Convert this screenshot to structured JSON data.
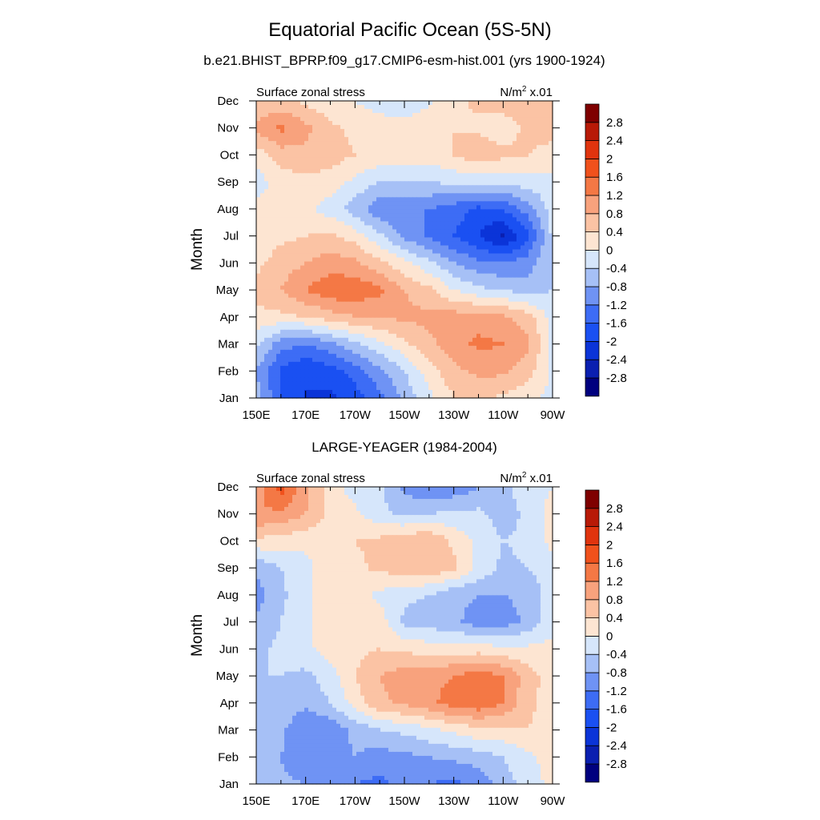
{
  "title": "Equatorial Pacific Ocean (5S-5N)",
  "colorbar": {
    "levels": [
      -2.8,
      -2.4,
      -2,
      -1.6,
      -1.2,
      -0.8,
      -0.4,
      0,
      0.4,
      0.8,
      1.2,
      1.6,
      2,
      2.4,
      2.8
    ],
    "labels": [
      "-2.8",
      "-2.4",
      "-2",
      "-1.6",
      "-1.2",
      "-0.8",
      "-0.4",
      "0",
      "0.4",
      "0.8",
      "1.2",
      "1.6",
      "2",
      "2.4",
      "2.8"
    ],
    "colors": [
      "#00007f",
      "#0a1fb0",
      "#0b34d8",
      "#1a50f2",
      "#3d6cf5",
      "#6f93f4",
      "#a6c0f6",
      "#d6e6fb",
      "#fde5d2",
      "#fbc3a4",
      "#f8a27d",
      "#f47845",
      "#f0511c",
      "#e0340e",
      "#b81a07",
      "#7f0000"
    ]
  },
  "chart_data": [
    {
      "type": "heatmap",
      "title": "b.e21.BHIST_BPRP.f09_g17.CMIP6-esm-hist.001 (yrs 1900-1924)",
      "left_label": "Surface zonal stress",
      "right_label_base": "N/m",
      "right_label_sup": "2",
      "right_label_tail": " x.01",
      "ylabel": "Month",
      "x_ticks": [
        "150E",
        "170E",
        "170W",
        "150W",
        "130W",
        "110W",
        "90W"
      ],
      "y_ticks": [
        "Jan",
        "Feb",
        "Mar",
        "Apr",
        "May",
        "Jun",
        "Jul",
        "Aug",
        "Sep",
        "Oct",
        "Nov",
        "Dec"
      ],
      "xlim_deg_east": [
        150,
        270
      ],
      "x_grid_deg_east": [
        150,
        160,
        170,
        180,
        190,
        200,
        210,
        220,
        230,
        240,
        250,
        260,
        270
      ],
      "values": [
        [
          -0.6,
          -1.6,
          -2.0,
          -2.1,
          -1.8,
          -1.3,
          -0.7,
          -0.1,
          0.4,
          0.5,
          0.3,
          0.1,
          -0.1
        ],
        [
          -0.8,
          -1.7,
          -2.0,
          -1.8,
          -1.4,
          -0.9,
          -0.4,
          0.2,
          0.7,
          0.9,
          0.9,
          0.6,
          -0.1
        ],
        [
          -0.3,
          -1.0,
          -1.2,
          -0.9,
          -0.5,
          -0.1,
          0.3,
          0.7,
          1.0,
          1.3,
          1.2,
          0.9,
          -0.1
        ],
        [
          0.3,
          0.3,
          0.4,
          0.6,
          0.8,
          0.8,
          0.9,
          0.9,
          1.0,
          1.0,
          0.9,
          0.6,
          -0.2
        ],
        [
          0.5,
          0.8,
          1.2,
          1.5,
          1.5,
          1.3,
          0.8,
          0.5,
          0.0,
          -0.3,
          -0.4,
          -0.6,
          -0.4
        ],
        [
          0.3,
          0.6,
          0.8,
          1.0,
          0.9,
          0.5,
          0.1,
          -0.3,
          -0.8,
          -1.1,
          -1.2,
          -1.0,
          -0.4
        ],
        [
          0.1,
          0.3,
          0.4,
          0.5,
          0.2,
          -0.3,
          -0.9,
          -1.3,
          -1.6,
          -2.0,
          -2.5,
          -1.7,
          -0.3
        ],
        [
          0.1,
          0.2,
          0.1,
          -0.2,
          -0.6,
          -1.1,
          -1.2,
          -1.2,
          -1.4,
          -1.7,
          -1.6,
          -1.0,
          -0.2
        ],
        [
          -0.2,
          0.2,
          0.3,
          0.2,
          -0.1,
          -0.4,
          -0.4,
          -0.4,
          -0.3,
          -0.3,
          -0.2,
          -0.2,
          -0.1
        ],
        [
          0.2,
          0.6,
          0.7,
          0.6,
          0.4,
          0.3,
          0.2,
          0.2,
          0.4,
          0.7,
          0.5,
          0.4,
          0.3
        ],
        [
          0.9,
          1.3,
          0.9,
          0.5,
          0.3,
          0.2,
          0.2,
          0.3,
          0.4,
          0.3,
          0.2,
          0.5,
          0.5
        ],
        [
          0.5,
          0.5,
          0.3,
          0.1,
          0.0,
          -0.2,
          -0.3,
          -0.1,
          0.3,
          0.5,
          0.6,
          0.6,
          0.6
        ]
      ]
    },
    {
      "type": "heatmap",
      "title": "LARGE-YEAGER (1984-2004)",
      "left_label": "Surface zonal stress",
      "right_label_base": "N/m",
      "right_label_sup": "2",
      "right_label_tail": " x.01",
      "ylabel": "Month",
      "x_ticks": [
        "150E",
        "170E",
        "170W",
        "150W",
        "130W",
        "110W",
        "90W"
      ],
      "y_ticks": [
        "Jan",
        "Feb",
        "Mar",
        "Apr",
        "May",
        "Jun",
        "Jul",
        "Aug",
        "Sep",
        "Oct",
        "Nov",
        "Dec"
      ],
      "xlim_deg_east": [
        150,
        270
      ],
      "x_grid_deg_east": [
        150,
        160,
        170,
        180,
        190,
        200,
        210,
        220,
        230,
        240,
        250,
        260,
        270
      ],
      "values": [
        [
          -0.6,
          -0.7,
          -0.8,
          -0.9,
          -1.2,
          -1.3,
          -1.1,
          -1.2,
          -1.3,
          -1.1,
          -0.6,
          -0.2,
          0.1
        ],
        [
          -0.7,
          -0.8,
          -1.2,
          -0.9,
          -0.8,
          -1.0,
          -0.9,
          -0.8,
          -0.7,
          -0.6,
          -0.4,
          -0.1,
          0.2
        ],
        [
          -0.5,
          -0.7,
          -1.2,
          -1.1,
          -0.7,
          -0.4,
          -0.3,
          -0.1,
          0.1,
          0.3,
          0.3,
          0.4,
          0.2
        ],
        [
          -0.4,
          -0.5,
          -0.7,
          -0.4,
          0.2,
          0.7,
          0.9,
          1.1,
          1.4,
          1.5,
          1.2,
          0.5,
          0.2
        ],
        [
          -0.4,
          -0.4,
          -0.5,
          -0.2,
          0.4,
          0.8,
          1.0,
          1.1,
          1.2,
          1.4,
          1.2,
          0.6,
          0.2
        ],
        [
          -0.5,
          -0.3,
          -0.1,
          0.2,
          0.3,
          0.4,
          0.3,
          0.2,
          0.2,
          0.2,
          0.1,
          0.1,
          0.1
        ],
        [
          -0.7,
          -0.4,
          -0.1,
          0.2,
          0.3,
          0.2,
          -0.5,
          -0.6,
          -0.7,
          -1.0,
          -1.0,
          -0.7,
          -0.1
        ],
        [
          -1.0,
          -0.5,
          -0.1,
          0.2,
          0.2,
          -0.1,
          -0.3,
          -0.4,
          -0.7,
          -0.8,
          -0.8,
          -0.7,
          -0.2
        ],
        [
          -0.7,
          -0.4,
          -0.1,
          0.2,
          0.3,
          0.5,
          0.6,
          0.7,
          0.5,
          -0.1,
          -0.5,
          -0.4,
          -0.1
        ],
        [
          0.3,
          0.2,
          0.1,
          0.2,
          0.4,
          0.5,
          0.7,
          0.8,
          0.3,
          -0.1,
          -0.4,
          -0.3,
          0.1
        ],
        [
          1.2,
          1.1,
          0.8,
          0.3,
          0.1,
          -0.3,
          -0.5,
          -0.4,
          -0.3,
          -0.3,
          -0.6,
          -0.3,
          0.2
        ],
        [
          1.0,
          1.8,
          0.9,
          0.2,
          -0.2,
          -0.3,
          -0.9,
          -1.2,
          -1.1,
          -0.8,
          -0.5,
          -0.2,
          0.0
        ]
      ]
    }
  ]
}
